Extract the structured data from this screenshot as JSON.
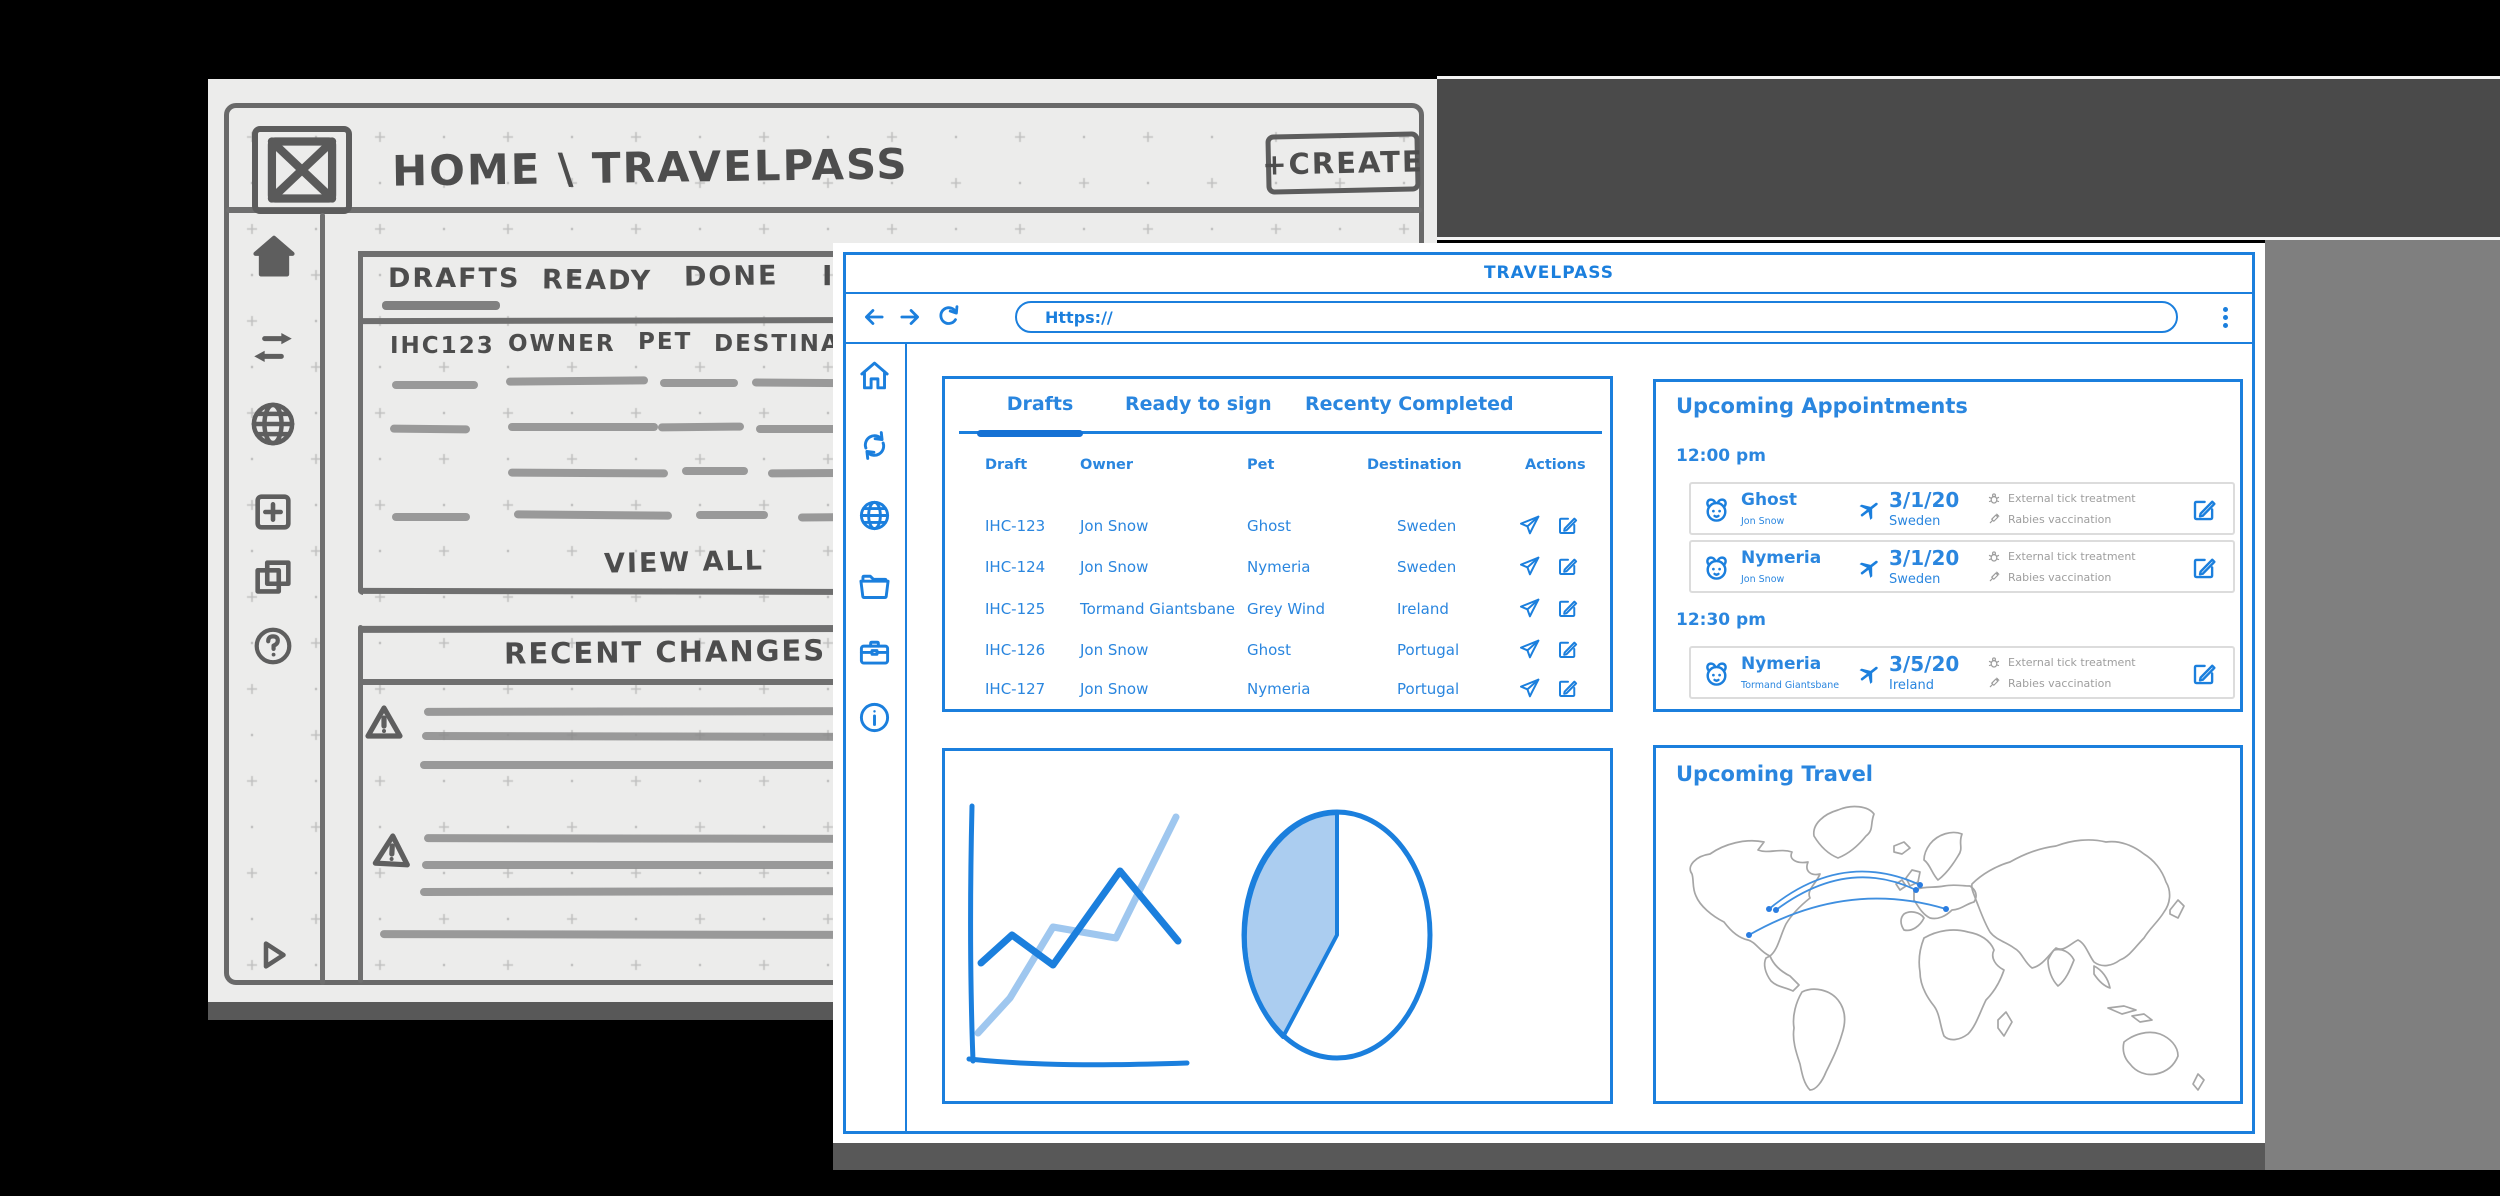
{
  "colors": {
    "accent": "#1b7fdd",
    "accent_light": "#9fc7ef",
    "pie_fill": "#abcdf0",
    "muted_gray": "#9e9e9e",
    "pencil": "#5e5e5e",
    "paper": "#ececeb"
  },
  "sketch": {
    "logo": "x-placeholder-logo",
    "breadcrumb": "HOME \\ TRAVELPASS",
    "create_button": "+CREATE",
    "tabs": [
      "DRAFTS",
      "READY",
      "DONE",
      "I"
    ],
    "table_headers": [
      "IHC123",
      "OWNER",
      "PET",
      "DESTINA"
    ],
    "view_all": "VIEW ALL",
    "recent_changes": "RECENT CHANGES",
    "sidebar_icons": [
      "home-icon",
      "transfer-arrows-icon",
      "globe-icon",
      "add-square-icon",
      "copy-icon",
      "help-icon",
      "play-icon"
    ]
  },
  "window": {
    "title": "TRAVELPASS",
    "browser": {
      "url": "Https://",
      "icons": [
        "back-arrow-icon",
        "forward-arrow-icon",
        "refresh-icon",
        "kebab-menu-icon"
      ]
    },
    "sidebar_icons": [
      "home-icon",
      "sync-icon",
      "globe-icon",
      "folder-icon",
      "briefcase-icon",
      "info-icon"
    ],
    "tabs": [
      {
        "label": "Drafts",
        "active": true
      },
      {
        "label": "Ready to sign",
        "active": false
      },
      {
        "label": "Recenty Completed",
        "active": false
      }
    ],
    "table": {
      "headers": [
        "Draft",
        "Owner",
        "Pet",
        "Destination",
        "Actions"
      ],
      "action_icons": [
        "send-icon",
        "edit-icon"
      ],
      "rows": [
        {
          "draft": "IHC-123",
          "owner": "Jon Snow",
          "pet": "Ghost",
          "destination": "Sweden"
        },
        {
          "draft": "IHC-124",
          "owner": "Jon Snow",
          "pet": "Nymeria",
          "destination": "Sweden"
        },
        {
          "draft": "IHC-125",
          "owner": "Tormand Giantsbane",
          "pet": "Grey Wind",
          "destination": "Ireland"
        },
        {
          "draft": "IHC-126",
          "owner": "Jon Snow",
          "pet": "Ghost",
          "destination": "Portugal"
        },
        {
          "draft": "IHC-127",
          "owner": "Jon Snow",
          "pet": "Nymeria",
          "destination": "Portugal"
        }
      ]
    },
    "appointments": {
      "title": "Upcoming Appointments",
      "groups": [
        {
          "time": "12:00 pm",
          "cards": [
            {
              "pet": "Ghost",
              "owner": "Jon Snow",
              "date": "3/1/20",
              "destination": "Sweden",
              "treatments": [
                "External tick treatment",
                "Rabies vaccination"
              ]
            },
            {
              "pet": "Nymeria",
              "owner": "Jon Snow",
              "date": "3/1/20",
              "destination": "Sweden",
              "treatments": [
                "External tick treatment",
                "Rabies vaccination"
              ]
            }
          ]
        },
        {
          "time": "12:30 pm",
          "cards": [
            {
              "pet": "Nymeria",
              "owner": "Tormand Giantsbane",
              "date": "3/5/20",
              "destination": "Ireland",
              "treatments": [
                "External tick treatment",
                "Rabies vaccination"
              ]
            }
          ]
        }
      ]
    },
    "travel": {
      "title": "Upcoming Travel"
    }
  },
  "chart_data": [
    {
      "type": "line",
      "x": [
        1,
        2,
        3,
        4,
        5
      ],
      "series": [
        {
          "name": "dark-blue-series",
          "values": [
            3.4,
            4.3,
            3.3,
            6.4,
            4.1
          ]
        },
        {
          "name": "light-blue-series",
          "values": [
            1.2,
            2.3,
            4.6,
            4.2,
            8.2
          ]
        }
      ],
      "title": "",
      "xlabel": "",
      "ylabel": "",
      "grid": false,
      "axes_labeled": false
    },
    {
      "type": "pie",
      "labels": [
        "highlighted-slice",
        "remainder"
      ],
      "values": [
        40,
        60
      ]
    }
  ]
}
